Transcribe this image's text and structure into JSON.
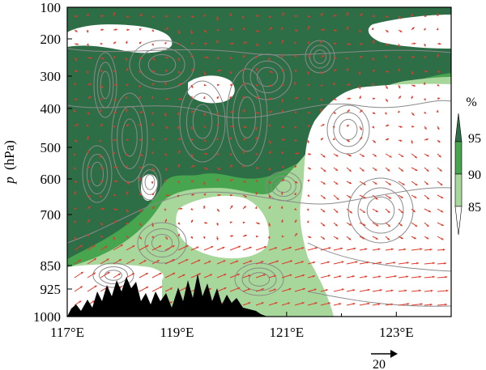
{
  "chart_data": {
    "type": "contour",
    "title": "",
    "xlabel": "",
    "ylabel_italic": "p",
    "ylabel_unit": "(hPa)",
    "xlim": [
      117,
      124
    ],
    "x_ticks": [
      {
        "value": 117,
        "label": "117°E"
      },
      {
        "value": 119,
        "label": "119°E"
      },
      {
        "value": 121,
        "label": "121°E"
      },
      {
        "value": 123,
        "label": "123°E"
      }
    ],
    "y_ticks": [
      {
        "value": 100,
        "label": "100"
      },
      {
        "value": 200,
        "label": "200"
      },
      {
        "value": 300,
        "label": "300"
      },
      {
        "value": 400,
        "label": "400"
      },
      {
        "value": 500,
        "label": "500"
      },
      {
        "value": 600,
        "label": "600"
      },
      {
        "value": 700,
        "label": "700"
      },
      {
        "value": 850,
        "label": "850"
      },
      {
        "value": 925,
        "label": "925"
      },
      {
        "value": 1000,
        "label": "1000"
      }
    ],
    "colorbar": {
      "unit": "%",
      "ticks": [
        "95",
        "90",
        "85"
      ],
      "levels": [
        {
          "from": 85,
          "to": 90,
          "color": "#a8d79b"
        },
        {
          "from": 90,
          "to": 95,
          "color": "#47a44f"
        },
        {
          "from": 95,
          "to": 100,
          "color": "#2e6e46"
        }
      ]
    },
    "vector_reference": {
      "label": "20",
      "color": "#000000"
    },
    "wind_vector_color": "#e03a2a",
    "contour_color": "#8a8a8a",
    "terrain_color": "#000000"
  }
}
